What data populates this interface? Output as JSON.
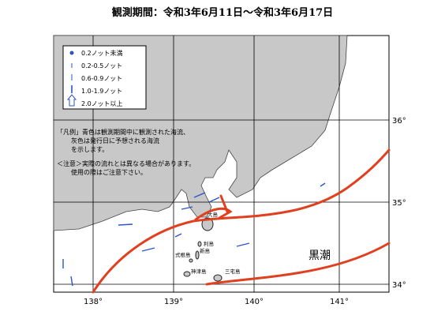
{
  "header": {
    "title": "観測期間：令和3年6月11日～令和3年6月17日"
  },
  "legend": {
    "items": [
      "0.2ノット未満",
      "0.2-0.5ノット",
      "0.6-0.9ノット",
      "1.0-1.9ノット",
      "2.0ノット以上"
    ]
  },
  "notes": [
    "「凡例」青色は観測期間中に観測された海流、",
    "灰色は発行日に予想される海流",
    "を示します。",
    "＜注意＞実際の流れとは異なる場合があります。",
    "使用の際はご注意下さい。"
  ],
  "axes": {
    "longitude": [
      "138°",
      "139°",
      "140°",
      "141°"
    ],
    "latitude": [
      "36°",
      "35°",
      "34°"
    ]
  },
  "islands": [
    "大島",
    "利島",
    "新島",
    "式根島",
    "神津島",
    "三宅島"
  ],
  "current": {
    "label": "黒潮"
  }
}
